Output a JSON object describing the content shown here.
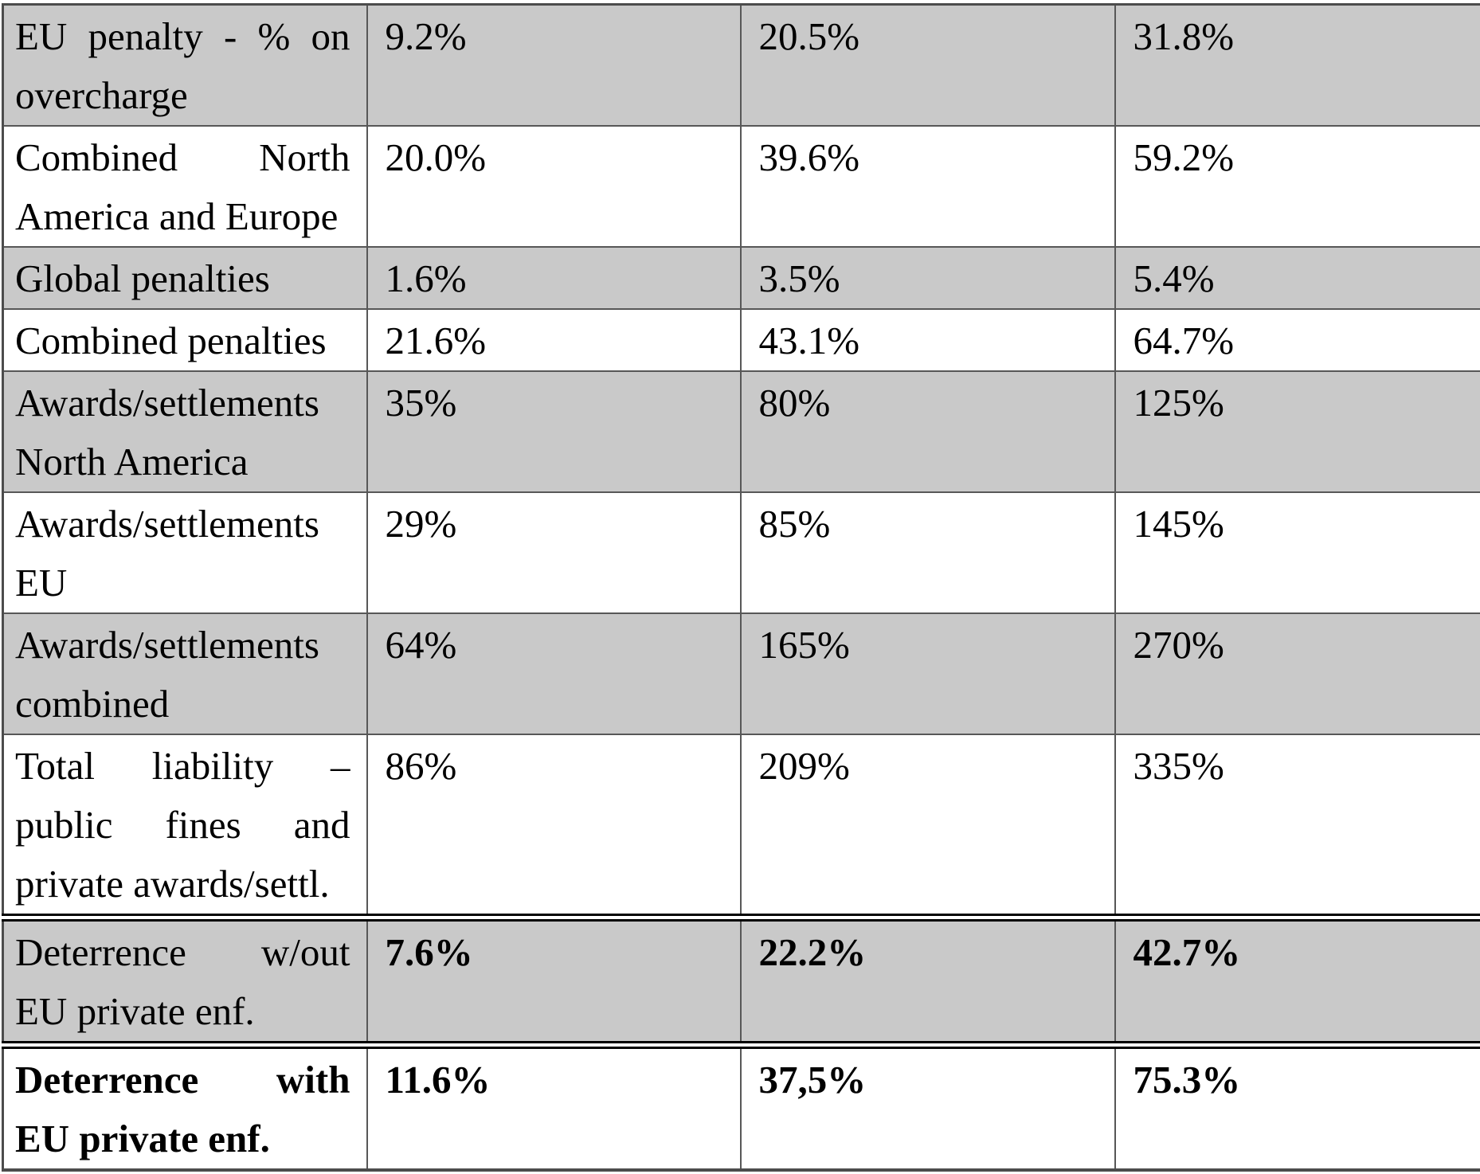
{
  "table": {
    "description_visible_text_only": "cropped table, no header row visible",
    "colors": {
      "row_shade": "#c9c9c9",
      "grid_line": "#575757",
      "double_rule": "#000000"
    },
    "rows": [
      {
        "label_lines": [
          [
            "EU",
            "penalty",
            "-",
            "%",
            "on"
          ],
          [
            "overcharge"
          ]
        ],
        "values": [
          "9.2%",
          "20.5%",
          "31.8%"
        ],
        "bold_label": false,
        "bold_values": false,
        "double_border_top": false
      },
      {
        "label_lines": [
          [
            "Combined",
            "North"
          ],
          [
            "America and Europe"
          ]
        ],
        "values": [
          "20.0%",
          "39.6%",
          "59.2%"
        ],
        "bold_label": false,
        "bold_values": false,
        "double_border_top": false
      },
      {
        "label_lines": [
          [
            "Global penalties"
          ]
        ],
        "values": [
          "1.6%",
          "3.5%",
          "5.4%"
        ],
        "bold_label": false,
        "bold_values": false,
        "double_border_top": false
      },
      {
        "label_lines": [
          [
            "Combined penalties"
          ]
        ],
        "values": [
          "21.6%",
          "43.1%",
          "64.7%"
        ],
        "bold_label": false,
        "bold_values": false,
        "double_border_top": false
      },
      {
        "label_lines": [
          [
            "Awards/settlements"
          ],
          [
            "North America"
          ]
        ],
        "values": [
          "35%",
          "80%",
          "125%"
        ],
        "bold_label": false,
        "bold_values": false,
        "double_border_top": false
      },
      {
        "label_lines": [
          [
            "Awards/settlements"
          ],
          [
            "EU"
          ]
        ],
        "values": [
          "29%",
          "85%",
          "145%"
        ],
        "bold_label": false,
        "bold_values": false,
        "double_border_top": false
      },
      {
        "label_lines": [
          [
            "Awards/settlements"
          ],
          [
            "combined"
          ]
        ],
        "values": [
          "64%",
          "165%",
          "270%"
        ],
        "bold_label": false,
        "bold_values": false,
        "double_border_top": false
      },
      {
        "label_lines": [
          [
            "Total",
            "liability",
            "–"
          ],
          [
            "public",
            "fines",
            "and"
          ],
          [
            "private awards/settl."
          ]
        ],
        "values": [
          "86%",
          "209%",
          "335%"
        ],
        "bold_label": false,
        "bold_values": false,
        "double_border_top": false
      },
      {
        "label_lines": [
          [
            "Deterrence",
            "w/out"
          ],
          [
            "EU private enf."
          ]
        ],
        "values": [
          "7.6%",
          "22.2%",
          "42.7%"
        ],
        "bold_label": false,
        "bold_values": true,
        "double_border_top": true
      },
      {
        "label_lines": [
          [
            "Deterrence",
            "with"
          ],
          [
            "EU private enf."
          ]
        ],
        "values": [
          "11.6%",
          "37,5%",
          "75.3%"
        ],
        "bold_label": true,
        "bold_values": true,
        "double_border_top": true
      }
    ]
  }
}
